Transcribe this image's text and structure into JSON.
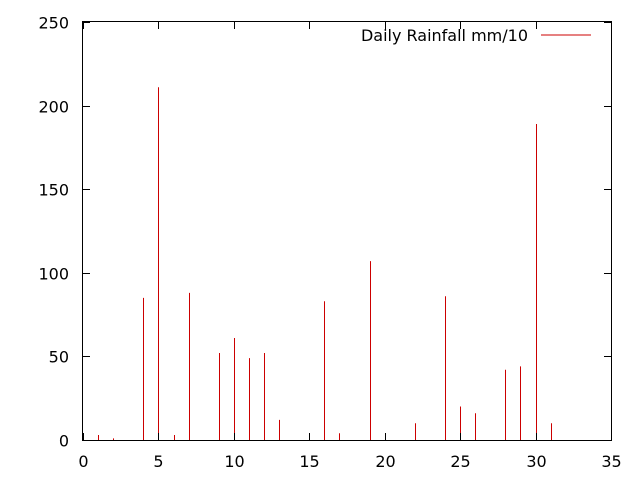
{
  "chart_data": {
    "type": "bar",
    "title": "",
    "xlabel": "",
    "ylabel": "",
    "xlim": [
      0,
      35
    ],
    "ylim": [
      0,
      250
    ],
    "xticks": [
      "0",
      "5",
      "10",
      "15",
      "20",
      "25",
      "30",
      "35"
    ],
    "yticks": [
      "0",
      "50",
      "100",
      "150",
      "200",
      "250"
    ],
    "grid": false,
    "legend_position": "top-right",
    "series": [
      {
        "name": "Daily Rainfall mm/10",
        "color": "#cc0000",
        "x": [
          1,
          2,
          4,
          5,
          6,
          7,
          9,
          10,
          11,
          12,
          13,
          16,
          17,
          19,
          22,
          24,
          25,
          26,
          28,
          29,
          30,
          31
        ],
        "values": [
          3,
          1,
          85,
          211,
          3,
          88,
          52,
          61,
          49,
          52,
          12,
          83,
          4,
          107,
          10,
          86,
          20,
          16,
          42,
          44,
          189,
          10
        ]
      }
    ]
  }
}
